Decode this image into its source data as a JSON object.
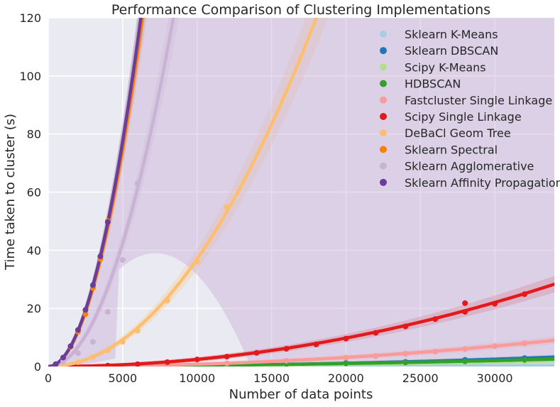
{
  "chart_data": {
    "type": "scatter",
    "title": "Performance Comparison of Clustering Implementations",
    "xlabel": "Number of data points",
    "ylabel": "Time taken to cluster (s)",
    "xlim": [
      0,
      34000
    ],
    "ylim": [
      0,
      120
    ],
    "xticks": [
      "0",
      "5000",
      "10000",
      "15000",
      "20000",
      "25000",
      "30000"
    ],
    "yticks": [
      "0",
      "20",
      "40",
      "60",
      "80",
      "100",
      "120"
    ],
    "grid": true,
    "legend_position": "top-right",
    "series": [
      {
        "name": "Sklearn K-Means",
        "color": "#a6cee3",
        "fit": [
          0.05,
          6e-06,
          0.0
        ],
        "x": [
          2000,
          4000,
          6000,
          8000,
          12000,
          16000,
          20000,
          24000,
          28000,
          32000
        ],
        "y": [
          0.1,
          0.1,
          0.1,
          0.1,
          0.2,
          0.2,
          0.2,
          0.3,
          0.3,
          0.3
        ]
      },
      {
        "name": "Sklearn DBSCAN",
        "color": "#1f78b4",
        "fit": [
          0.0,
          0.0,
          2.8e-09
        ],
        "x": [
          2000,
          4000,
          6000,
          8000,
          12000,
          16000,
          20000,
          24000,
          28000,
          32000
        ],
        "y": [
          0.0,
          0.1,
          0.1,
          0.2,
          0.4,
          0.7,
          1.2,
          1.6,
          2.3,
          2.9
        ]
      },
      {
        "name": "Scipy K-Means",
        "color": "#b2df8a",
        "fit": [
          0.0,
          1e-05,
          1.4e-09
        ],
        "x": [
          2000,
          4000,
          6000,
          8000,
          12000,
          16000,
          20000,
          24000,
          28000,
          32000
        ],
        "y": [
          0.1,
          0.1,
          0.2,
          0.2,
          0.4,
          0.6,
          0.9,
          1.2,
          1.5,
          1.8
        ]
      },
      {
        "name": "HDBSCAN",
        "color": "#33a02c",
        "fit": [
          0.0,
          2e-05,
          1.6e-09
        ],
        "x": [
          2000,
          4000,
          6000,
          8000,
          12000,
          16000,
          20000,
          24000,
          28000,
          32000
        ],
        "y": [
          0.1,
          0.1,
          0.2,
          0.3,
          0.5,
          0.8,
          1.1,
          1.4,
          1.8,
          2.3
        ]
      },
      {
        "name": "Fastcluster Single Linkage",
        "color": "#fb9a99",
        "fit": [
          0.0,
          0.0,
          7.8e-09
        ],
        "x": [
          2000,
          4000,
          6000,
          8000,
          12000,
          16000,
          20000,
          22000,
          24000,
          26000,
          28000,
          30000,
          32000
        ],
        "y": [
          0.0,
          0.1,
          0.3,
          0.5,
          1.1,
          2.0,
          3.1,
          3.6,
          4.4,
          5.1,
          6.0,
          7.0,
          8.0
        ]
      },
      {
        "name": "Scipy Single Linkage",
        "color": "#e31a1c",
        "fit": [
          0.0,
          0.0,
          2.45e-08
        ],
        "x": [
          2000,
          4000,
          6000,
          8000,
          10000,
          12000,
          14000,
          16000,
          18000,
          20000,
          22000,
          24000,
          26000,
          28000,
          28000,
          30000,
          32000
        ],
        "y": [
          0.1,
          0.3,
          0.8,
          1.5,
          2.4,
          3.4,
          4.7,
          6.1,
          7.6,
          9.6,
          11.6,
          13.8,
          16.3,
          18.8,
          21.8,
          21.6,
          24.9
        ]
      },
      {
        "name": "DeBaCl Geom Tree",
        "color": "#fdbf6f",
        "fit": [
          0.0,
          0.0,
          3.7e-07
        ],
        "x": [
          1000,
          2000,
          3000,
          4000,
          5000,
          6000,
          8000,
          10000,
          12000
        ],
        "y": [
          0.5,
          1.5,
          3.3,
          5.6,
          8.5,
          12.3,
          22.7,
          36.0,
          54.8
        ]
      },
      {
        "name": "Sklearn Spectral",
        "color": "#ff7f00",
        "fit": [
          0.0,
          0.0,
          3e-06
        ],
        "x": [
          500,
          1000,
          1500,
          2000,
          2500,
          3000,
          3500,
          4000
        ],
        "y": [
          0.8,
          3.0,
          6.8,
          12.0,
          18.0,
          27.0,
          37.0,
          50.0
        ]
      },
      {
        "name": "Sklearn Agglomerative",
        "color": "#cab2d6",
        "fit": [
          0.0,
          0.0,
          1.7e-06
        ],
        "x": [
          1000,
          2000,
          3000,
          4000,
          5000,
          6000
        ],
        "y": [
          1.7,
          4.6,
          8.5,
          18.8,
          36.7,
          63.0
        ]
      },
      {
        "name": "Sklearn Affinity Propagation",
        "color": "#6a3d9a",
        "fit": [
          0.0,
          0.0,
          3.1e-06
        ],
        "x": [
          500,
          1000,
          1500,
          2000,
          2500,
          3000,
          3500,
          4000
        ],
        "y": [
          0.8,
          3.1,
          7.0,
          12.6,
          19.5,
          28.0,
          37.9,
          49.7
        ]
      }
    ]
  }
}
